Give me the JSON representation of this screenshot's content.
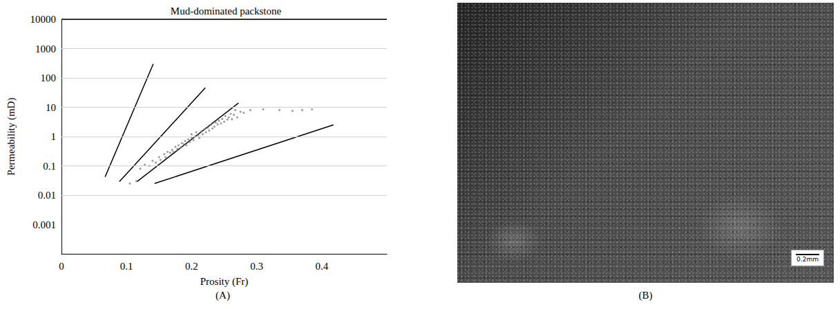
{
  "chart_data": {
    "type": "scatter",
    "title": "Mud-dominated packstone",
    "xlabel": "Prosity (Fr)",
    "ylabel": "Permeability (mD)",
    "log": "y",
    "grid": true,
    "xlim": [
      0,
      0.5
    ],
    "xticks": [
      0,
      0.1,
      0.2,
      0.3,
      0.4
    ],
    "ylim": [
      0.0001,
      10000
    ],
    "yticks": [
      0.001,
      0.01,
      0.1,
      1,
      10,
      100,
      1000,
      10000
    ],
    "series": [
      {
        "type": "scatter",
        "color": "#7f7f7f",
        "marker": "circle",
        "x": [
          0.105,
          0.115,
          0.121,
          0.128,
          0.135,
          0.14,
          0.145,
          0.15,
          0.152,
          0.158,
          0.16,
          0.163,
          0.167,
          0.17,
          0.172,
          0.175,
          0.178,
          0.18,
          0.183,
          0.185,
          0.188,
          0.19,
          0.192,
          0.195,
          0.197,
          0.2,
          0.2,
          0.203,
          0.205,
          0.207,
          0.21,
          0.212,
          0.215,
          0.217,
          0.22,
          0.222,
          0.225,
          0.227,
          0.23,
          0.232,
          0.235,
          0.237,
          0.24,
          0.242,
          0.245,
          0.247,
          0.25,
          0.252,
          0.255,
          0.257,
          0.26,
          0.262,
          0.265,
          0.267,
          0.27,
          0.275,
          0.28,
          0.29,
          0.31,
          0.335,
          0.355,
          0.37,
          0.385
        ],
        "values": [
          0.025,
          0.03,
          0.08,
          0.11,
          0.1,
          0.15,
          0.13,
          0.2,
          0.16,
          0.25,
          0.2,
          0.3,
          0.28,
          0.35,
          0.3,
          0.45,
          0.38,
          0.5,
          0.42,
          0.6,
          0.55,
          0.7,
          0.5,
          0.8,
          0.65,
          0.9,
          1.2,
          0.75,
          1.0,
          1.4,
          1.1,
          0.9,
          1.5,
          1.2,
          1.8,
          1.4,
          2.0,
          1.6,
          2.5,
          1.9,
          2.2,
          3.0,
          2.6,
          3.5,
          2.8,
          4.0,
          3.2,
          5.0,
          3.8,
          4.5,
          6.0,
          3.9,
          5.5,
          8.0,
          4.5,
          7.0,
          6.5,
          8.0,
          8.5,
          8.0,
          7.5,
          8.0,
          8.5
        ]
      },
      {
        "type": "line",
        "color": "#000000",
        "line_style": "solid",
        "x": [
          0.067,
          0.141
        ],
        "values": [
          0.042,
          300
        ]
      },
      {
        "type": "line",
        "color": "#000000",
        "line_style": "solid",
        "x": [
          0.089,
          0.221
        ],
        "values": [
          0.029,
          46
        ]
      },
      {
        "type": "line",
        "color": "#000000",
        "line_style": "solid",
        "x": [
          0.116,
          0.272
        ],
        "values": [
          0.029,
          14
        ]
      },
      {
        "type": "line",
        "color": "#000000",
        "line_style": "solid",
        "x": [
          0.143,
          0.418
        ],
        "values": [
          0.025,
          2.5
        ]
      }
    ]
  },
  "panels": {
    "A": "(A)",
    "B": "(B)"
  },
  "image": {
    "scale_bar": "0.2mm"
  }
}
